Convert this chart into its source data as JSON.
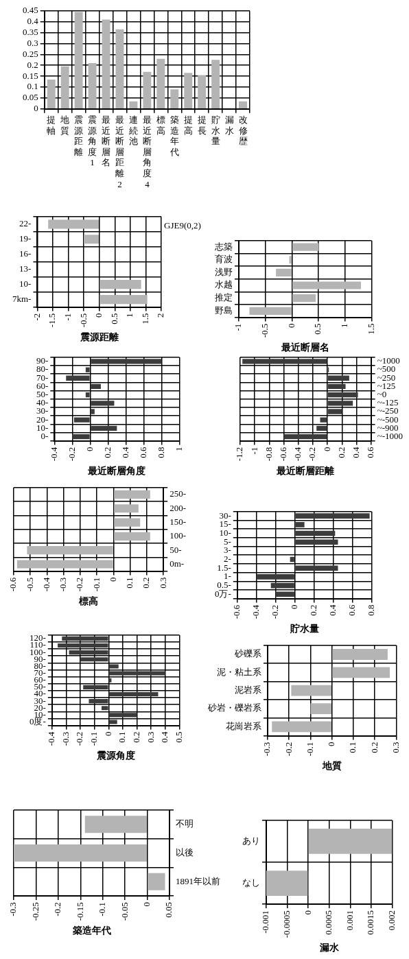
{
  "chart_data": [
    {
      "type": "bar",
      "categories": [
        "提軸",
        "地質",
        "震源距離",
        "震源角度1",
        "最近断層名",
        "最近断層距離2",
        "連続池",
        "最近断層角度4",
        "標高",
        "築造年代",
        "提高",
        "提長",
        "貯水量",
        "漏水",
        "改修歴"
      ],
      "values": [
        0.135,
        0.195,
        0.445,
        0.21,
        0.41,
        0.365,
        0.035,
        0.17,
        0.23,
        0.09,
        0.165,
        0.155,
        0.225,
        0,
        0.035
      ],
      "color": "#b4b4b4",
      "ylim": [
        0,
        0.45
      ],
      "yticks": [
        0,
        0.05,
        0.1,
        0.15,
        0.2,
        0.25,
        0.3,
        0.35,
        0.4,
        0.45
      ],
      "grid": true
    },
    {
      "type": "bar",
      "orientation": "horizontal",
      "categories": [
        "22-",
        "19-",
        "16-",
        "13-",
        "10-",
        "7km-"
      ],
      "values": [
        -1.65,
        -0.5,
        0,
        null,
        1.35,
        1.55
      ],
      "color": "#b4b4b4",
      "xlim": [
        -2,
        2
      ],
      "xticks": [
        -2,
        -1.5,
        -1,
        -0.5,
        0,
        0.5,
        1,
        1.5,
        2
      ],
      "xlabel": "震源距離",
      "annotations": [
        "GJE9(0,2)"
      ],
      "grid": true
    },
    {
      "type": "bar",
      "orientation": "horizontal",
      "categories": [
        "志築",
        "育波",
        "浅野",
        "水越",
        "推定",
        "野島"
      ],
      "values": [
        0.5,
        -0.05,
        -0.3,
        1.3,
        0.45,
        -0.8
      ],
      "color": "#b4b4b4",
      "xlim": [
        -1,
        1.5
      ],
      "xticks": [
        -1,
        -0.5,
        0,
        0.5,
        1,
        1.5
      ],
      "xlabel": "最近断層名",
      "grid": true
    },
    {
      "type": "bar",
      "orientation": "horizontal",
      "categories": [
        "90-",
        "80-",
        "70-",
        "60-",
        "50-",
        "40-",
        "30-",
        "20-",
        "10-",
        "0-"
      ],
      "values": [
        0.8,
        -0.05,
        -0.27,
        0.12,
        -0.05,
        0.27,
        0.05,
        -0.18,
        0.3,
        -0.2
      ],
      "color": "#3c3c3c",
      "xlim": [
        -0.4,
        1
      ],
      "xticks": [
        -0.4,
        -0.2,
        0,
        0.2,
        0.4,
        0.6,
        0.8,
        1
      ],
      "xlabel": "最近断層角度",
      "grid": true
    },
    {
      "type": "bar",
      "orientation": "horizontal",
      "categories": [
        "~1000",
        "~500",
        "~250",
        "~125",
        "~0",
        "~-125",
        "~-250",
        "~-500",
        "~-900",
        "~-1000"
      ],
      "values": [
        -1.17,
        0.02,
        0.3,
        0.25,
        0.42,
        0.35,
        0.2,
        -0.1,
        -0.15,
        -0.6
      ],
      "color": "#3c3c3c",
      "xlim": [
        -1.2,
        0.6
      ],
      "xticks": [
        -1.2,
        -1,
        -0.8,
        -0.6,
        -0.4,
        -0.2,
        0,
        0.2,
        0.4,
        0.6
      ],
      "xlabel": "最近断層距離",
      "grid": true
    },
    {
      "type": "bar",
      "orientation": "horizontal",
      "categories": [
        "250-",
        "200-",
        "150-",
        "100-",
        "50-",
        "0m-"
      ],
      "values": [
        0.22,
        0.15,
        0.16,
        0.22,
        -0.52,
        -0.58
      ],
      "color": "#b4b4b4",
      "xlim": [
        -0.6,
        0.3
      ],
      "xticks": [
        -0.6,
        -0.5,
        -0.4,
        -0.3,
        -0.2,
        -0.1,
        0,
        0.1,
        0.2,
        0.3
      ],
      "xlabel": "標高",
      "grid": true
    },
    {
      "type": "bar",
      "orientation": "horizontal",
      "categories": [
        "30-",
        "15-",
        "10-",
        "5-",
        "3-",
        "2-",
        "1.5-",
        "1-",
        "0.5-",
        "0万-"
      ],
      "values": [
        0.78,
        0.1,
        0.42,
        0.45,
        0,
        -0.05,
        0.45,
        -0.4,
        -0.25,
        -0.2
      ],
      "color": "#3c3c3c",
      "xlim": [
        -0.6,
        0.8
      ],
      "xticks": [
        -0.6,
        -0.4,
        -0.2,
        0,
        0.2,
        0.4,
        0.6,
        0.8
      ],
      "xlabel": "貯水量",
      "grid": true
    },
    {
      "type": "bar",
      "orientation": "horizontal",
      "categories": [
        "120-",
        "110-",
        "100-",
        "90-",
        "80-",
        "70-",
        "60-",
        "50-",
        "40-",
        "30-",
        "20-",
        "10-",
        "0度-"
      ],
      "values": [
        -0.33,
        -0.36,
        -0.28,
        -0.2,
        0.07,
        0.4,
        0.02,
        -0.18,
        0.35,
        -0.14,
        -0.05,
        0.2,
        0.06
      ],
      "color": "#3c3c3c",
      "xlim": [
        -0.4,
        0.5
      ],
      "xticks": [
        -0.4,
        -0.3,
        -0.2,
        -0.1,
        0,
        0.1,
        0.2,
        0.3,
        0.4,
        0.5
      ],
      "xlabel": "震源角度",
      "grid": true
    },
    {
      "type": "bar",
      "orientation": "horizontal",
      "categories": [
        "砂礫系",
        "泥・粘土系",
        "泥岩系",
        "砂岩・礫岩系",
        "花崗岩系"
      ],
      "values": [
        0.26,
        0.27,
        -0.19,
        -0.1,
        -0.28
      ],
      "color": "#b4b4b4",
      "xlim": [
        -0.3,
        0.3
      ],
      "xticks": [
        -0.3,
        -0.2,
        -0.1,
        0,
        0.1,
        0.2,
        0.3
      ],
      "xlabel": "地質",
      "grid": true
    },
    {
      "type": "bar",
      "orientation": "horizontal",
      "categories": [
        "不明",
        "以後",
        "1891年以前"
      ],
      "values": [
        -0.14,
        -0.3,
        0.04
      ],
      "color": "#b4b4b4",
      "xlim": [
        -0.3,
        0.05
      ],
      "xticks": [
        -0.3,
        -0.25,
        -0.2,
        -0.15,
        -0.1,
        -0.05,
        0,
        0.05
      ],
      "xlabel": "築造年代",
      "grid": true
    },
    {
      "type": "bar",
      "orientation": "horizontal",
      "categories": [
        "あり",
        "なし"
      ],
      "values": [
        0.002,
        -0.001
      ],
      "color": "#b4b4b4",
      "xlim": [
        -0.001,
        0.002
      ],
      "xticks": [
        -0.001,
        -0.0005,
        0,
        0.0005,
        0.001,
        0.0015,
        0.002
      ],
      "xlabel": "漏水",
      "grid": true
    }
  ]
}
